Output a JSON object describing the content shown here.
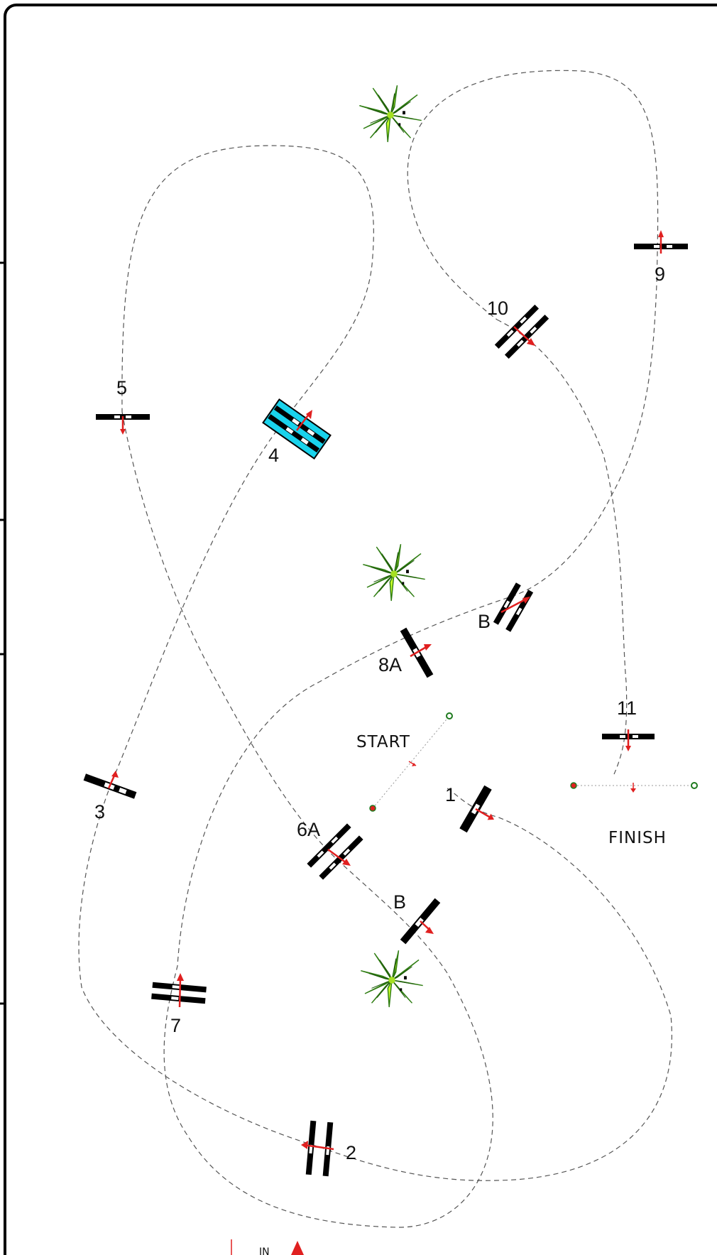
{
  "course": {
    "start_label": "START",
    "finish_label": "FINISH",
    "legend_in_label": "IN",
    "colors": {
      "arrow": "#e02020",
      "bar": "#000000",
      "highlight": "#19d3ec",
      "plant_dark": "#2f7d12",
      "plant_light": "#c8ff2a",
      "path": "#555555"
    },
    "obstacles": [
      {
        "id": "1",
        "label": "1",
        "kind": "vertical"
      },
      {
        "id": "2",
        "label": "2",
        "kind": "oxer"
      },
      {
        "id": "3",
        "label": "3",
        "kind": "vertical"
      },
      {
        "id": "4",
        "label": "4",
        "kind": "oxer",
        "highlight": true
      },
      {
        "id": "5",
        "label": "5",
        "kind": "vertical"
      },
      {
        "id": "6A",
        "label": "6A",
        "kind": "oxer"
      },
      {
        "id": "6B",
        "label": "B",
        "kind": "vertical"
      },
      {
        "id": "7",
        "label": "7",
        "kind": "oxer"
      },
      {
        "id": "8A",
        "label": "8A",
        "kind": "vertical"
      },
      {
        "id": "8B",
        "label": "B",
        "kind": "oxer"
      },
      {
        "id": "9",
        "label": "9",
        "kind": "vertical"
      },
      {
        "id": "10",
        "label": "10",
        "kind": "oxer"
      },
      {
        "id": "11",
        "label": "11",
        "kind": "vertical"
      }
    ],
    "decorations": [
      "plant-icon",
      "plant-icon",
      "plant-icon"
    ]
  }
}
